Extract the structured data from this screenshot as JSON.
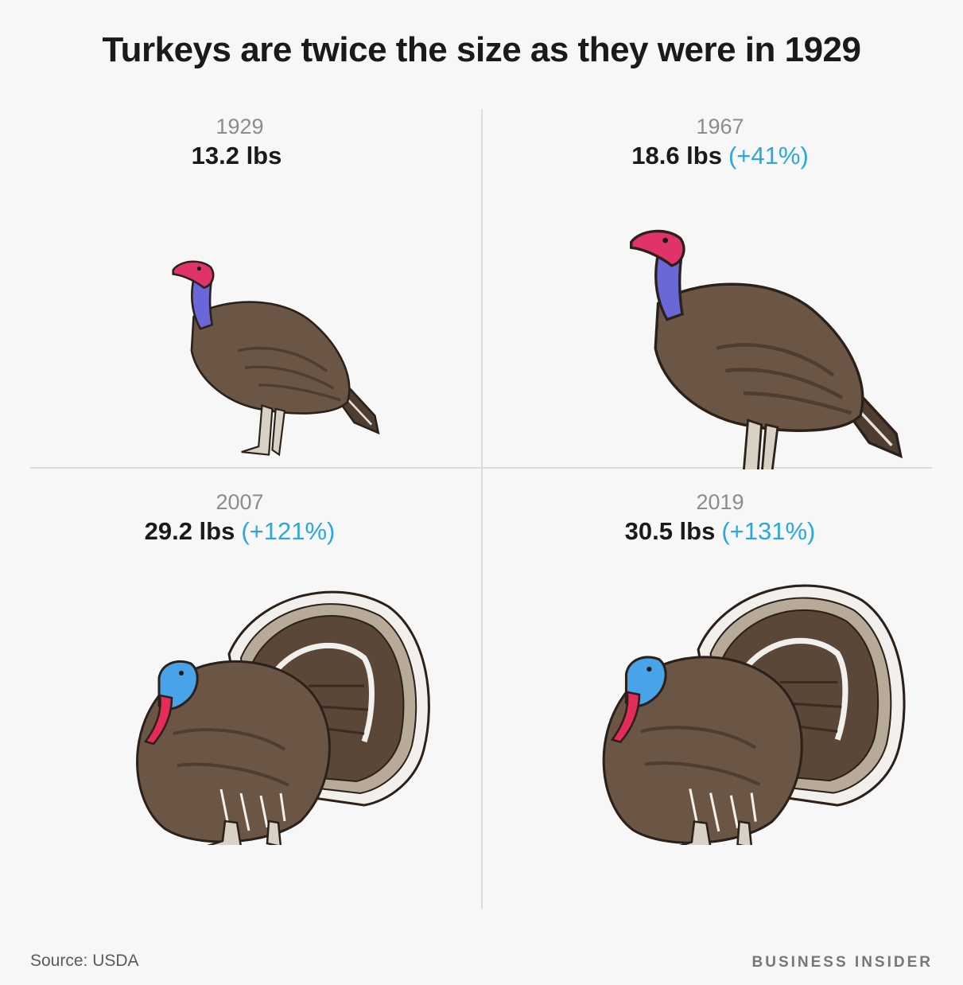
{
  "title": "Turkeys are twice the size as they were in 1929",
  "chart_data": {
    "type": "pictograph",
    "title": "Turkeys are twice the size as they were in 1929",
    "categories": [
      "1929",
      "1967",
      "2007",
      "2019"
    ],
    "values": [
      13.2,
      18.6,
      29.2,
      30.5
    ],
    "unit": "lbs",
    "panels": [
      {
        "year": "1929",
        "weight": "13.2 lbs",
        "change": ""
      },
      {
        "year": "1967",
        "weight": "18.6 lbs",
        "change": "(+41%)"
      },
      {
        "year": "2007",
        "weight": "29.2 lbs",
        "change": "(+121%)"
      },
      {
        "year": "2019",
        "weight": "30.5 lbs",
        "change": "(+131%)"
      }
    ],
    "icons": [
      "turkey-hen-icon",
      "turkey-hen-icon",
      "turkey-tom-icon",
      "turkey-tom-icon"
    ]
  },
  "footer": {
    "source_label": "Source:",
    "source": "USDA",
    "brand": "BUSINESS INSIDER"
  },
  "colors": {
    "background": "#f7f7f7",
    "title": "#1a1a1a",
    "year": "#8c8c8c",
    "percent": "#29a8e0",
    "body": "#6b5646",
    "body_dark": "#4e3d31",
    "divider": "#dcdcdc"
  }
}
